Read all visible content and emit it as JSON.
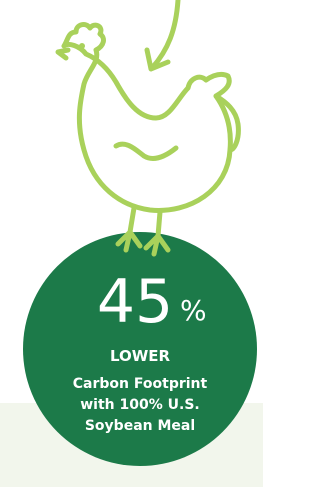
{
  "stat": {
    "number": "45",
    "unit": "%",
    "label": "LOWER",
    "lines": [
      "Carbon Footprint",
      "with 100% U.S.",
      "Soybean Meal"
    ]
  }
}
